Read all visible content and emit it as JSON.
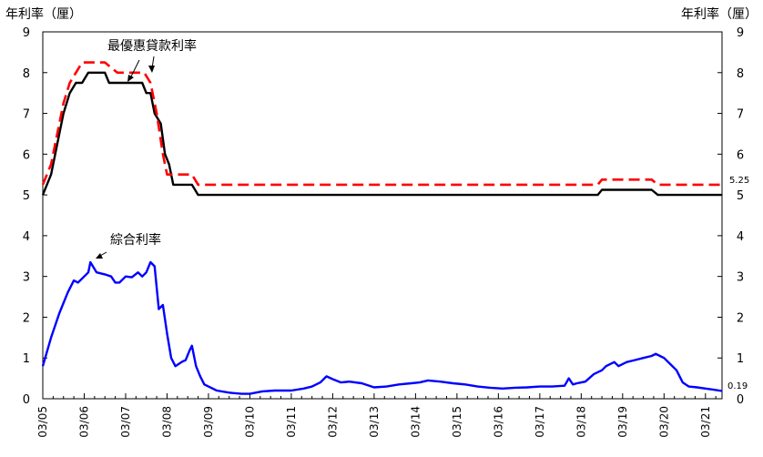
{
  "chart_data": {
    "type": "line",
    "title": "",
    "y_left_label": "年利率（厘）",
    "y_right_label": "年利率（厘）",
    "xlabel": "",
    "ylim": [
      0,
      9
    ],
    "yticks": [
      "0",
      "1",
      "2",
      "3",
      "4",
      "5",
      "6",
      "7",
      "8",
      "9"
    ],
    "xlim": [
      2005.0,
      2021.4
    ],
    "x_tick_labels": [
      "03/05",
      "03/06",
      "03/07",
      "03/08",
      "03/09",
      "03/10",
      "03/11",
      "03/12",
      "03/13",
      "03/14",
      "03/15",
      "03/16",
      "03/17",
      "03/18",
      "03/19",
      "03/20",
      "03/21"
    ],
    "x_ticks": [
      2005,
      2006,
      2007,
      2008,
      2009,
      2010,
      2011,
      2012,
      2013,
      2014,
      2015,
      2016,
      2017,
      2018,
      2019,
      2020,
      2021
    ],
    "grid": false,
    "annotations": [
      {
        "text": "最優惠貸款利率"
      },
      {
        "text": "綜合利率"
      }
    ],
    "end_labels": [
      {
        "text": "5.25"
      },
      {
        "text": "0.19"
      }
    ],
    "series": [
      {
        "name": "最優惠貸款利率",
        "color": "#ff0000",
        "style": "dashed",
        "x": [
          2005.0,
          2005.2,
          2005.35,
          2005.5,
          2005.65,
          2005.8,
          2005.95,
          2006.1,
          2006.5,
          2006.8,
          2007.0,
          2007.2,
          2007.45,
          2007.6,
          2007.75,
          2007.9,
          2008.0,
          2008.1,
          2008.6,
          2008.75,
          2018.4,
          2018.5,
          2019.7,
          2019.85,
          2021.4
        ],
        "y": [
          5.25,
          5.75,
          6.5,
          7.25,
          7.75,
          8.0,
          8.25,
          8.25,
          8.25,
          8.0,
          8.0,
          8.0,
          8.0,
          7.75,
          7.0,
          6.0,
          5.5,
          5.5,
          5.5,
          5.25,
          5.25,
          5.375,
          5.375,
          5.25,
          5.25
        ]
      },
      {
        "name": "",
        "color": "#000000",
        "style": "solid",
        "x": [
          2005.0,
          2005.2,
          2005.35,
          2005.5,
          2005.65,
          2005.8,
          2005.95,
          2006.1,
          2006.5,
          2006.6,
          2007.0,
          2007.4,
          2007.5,
          2007.6,
          2007.7,
          2007.85,
          2007.95,
          2008.05,
          2008.15,
          2008.6,
          2008.75,
          2018.4,
          2018.5,
          2019.7,
          2019.85,
          2021.4
        ],
        "y": [
          5.0,
          5.5,
          6.25,
          7.0,
          7.5,
          7.75,
          7.75,
          8.0,
          8.0,
          7.75,
          7.75,
          7.75,
          7.5,
          7.5,
          7.0,
          6.75,
          6.0,
          5.75,
          5.25,
          5.25,
          5.0,
          5.0,
          5.125,
          5.125,
          5.0,
          5.0
        ]
      },
      {
        "name": "綜合利率",
        "color": "#0000ff",
        "style": "solid",
        "x": [
          2005.0,
          2005.2,
          2005.4,
          2005.6,
          2005.75,
          2005.85,
          2006.0,
          2006.1,
          2006.15,
          2006.3,
          2006.5,
          2006.65,
          2006.75,
          2006.85,
          2007.0,
          2007.15,
          2007.3,
          2007.4,
          2007.5,
          2007.6,
          2007.7,
          2007.8,
          2007.9,
          2008.0,
          2008.1,
          2008.2,
          2008.35,
          2008.45,
          2008.55,
          2008.6,
          2008.7,
          2008.8,
          2008.9,
          2009.0,
          2009.2,
          2009.5,
          2009.8,
          2010.0,
          2010.3,
          2010.6,
          2011.0,
          2011.3,
          2011.5,
          2011.7,
          2011.85,
          2012.0,
          2012.2,
          2012.4,
          2012.7,
          2013.0,
          2013.3,
          2013.6,
          2013.9,
          2014.1,
          2014.3,
          2014.6,
          2014.9,
          2015.2,
          2015.5,
          2015.8,
          2016.1,
          2016.4,
          2016.7,
          2017.0,
          2017.3,
          2017.6,
          2017.7,
          2017.8,
          2017.9,
          2018.1,
          2018.3,
          2018.5,
          2018.6,
          2018.7,
          2018.8,
          2018.9,
          2019.0,
          2019.1,
          2019.3,
          2019.5,
          2019.7,
          2019.8,
          2019.9,
          2020.0,
          2020.15,
          2020.3,
          2020.45,
          2020.6,
          2020.8,
          2021.0,
          2021.2,
          2021.4
        ],
        "y": [
          0.8,
          1.5,
          2.1,
          2.6,
          2.9,
          2.85,
          3.0,
          3.1,
          3.35,
          3.1,
          3.05,
          3.0,
          2.85,
          2.85,
          3.0,
          2.98,
          3.1,
          3.0,
          3.1,
          3.35,
          3.25,
          2.2,
          2.3,
          1.6,
          1.0,
          0.8,
          0.9,
          0.95,
          1.2,
          1.3,
          0.8,
          0.55,
          0.35,
          0.3,
          0.2,
          0.15,
          0.12,
          0.12,
          0.18,
          0.2,
          0.2,
          0.25,
          0.3,
          0.4,
          0.55,
          0.48,
          0.4,
          0.42,
          0.38,
          0.28,
          0.3,
          0.35,
          0.38,
          0.4,
          0.45,
          0.42,
          0.38,
          0.35,
          0.3,
          0.27,
          0.25,
          0.27,
          0.28,
          0.3,
          0.3,
          0.32,
          0.5,
          0.35,
          0.38,
          0.42,
          0.6,
          0.7,
          0.8,
          0.85,
          0.9,
          0.8,
          0.85,
          0.9,
          0.95,
          1.0,
          1.05,
          1.1,
          1.05,
          1.0,
          0.85,
          0.7,
          0.4,
          0.3,
          0.28,
          0.25,
          0.22,
          0.19
        ]
      }
    ]
  }
}
